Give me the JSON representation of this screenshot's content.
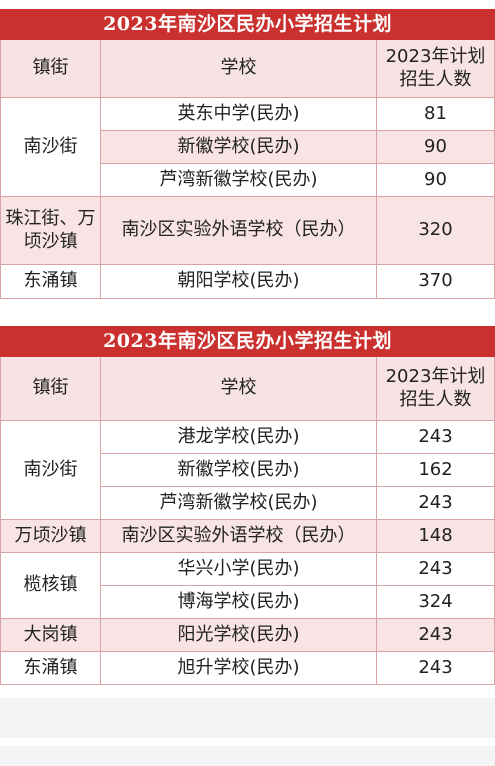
{
  "tables": [
    {
      "title": "2023年南沙区民办小学招生计划",
      "headers": {
        "town": "镇街",
        "school": "学校",
        "plan": "2023年计划招生人数"
      },
      "rows": [
        {
          "town": "南沙街",
          "school": "英东中学(民办)",
          "count": "81"
        },
        {
          "school": "新徽学校(民办)",
          "count": "90"
        },
        {
          "school": "芦湾新徽学校(民办)",
          "count": "90"
        },
        {
          "town": "珠江街、万顷沙镇",
          "school": "南沙区实验外语学校（民办）",
          "count": "320"
        },
        {
          "town": "东涌镇",
          "school": "朝阳学校(民办)",
          "count": "370"
        }
      ]
    },
    {
      "title": "2023年南沙区民办小学招生计划",
      "headers": {
        "town": "镇街",
        "school": "学校",
        "plan": "2023年计划招生人数"
      },
      "rows": [
        {
          "town": "南沙街",
          "school": "港龙学校(民办)",
          "count": "243"
        },
        {
          "school": "新徽学校(民办)",
          "count": "162"
        },
        {
          "school": "芦湾新徽学校(民办)",
          "count": "243"
        },
        {
          "town": "万顷沙镇",
          "school": "南沙区实验外语学校（民办）",
          "count": "148"
        },
        {
          "town": "榄核镇",
          "school": "华兴小学(民办)",
          "count": "243"
        },
        {
          "school": "博海学校(民办)",
          "count": "324"
        },
        {
          "town": "大岗镇",
          "school": "阳光学校(民办)",
          "count": "243"
        },
        {
          "town": "东涌镇",
          "school": "旭升学校(民办)",
          "count": "243"
        }
      ]
    }
  ]
}
